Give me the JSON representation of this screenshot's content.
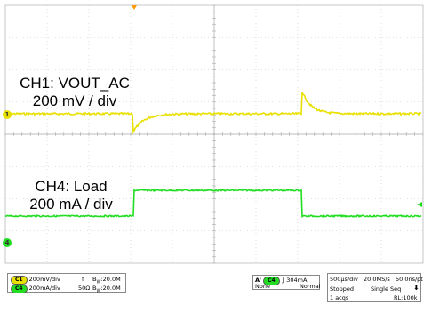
{
  "screen": {
    "colors": {
      "background": "#ffffff",
      "grid": "#c8c8c8",
      "ch1": "#e8e000",
      "ch4": "#22dd22",
      "trigger": "#ff9900"
    }
  },
  "annotations": {
    "ch1_title": "CH1: VOUT_AC",
    "ch1_scale": "200 mV / div",
    "ch4_title": "CH4: Load",
    "ch4_scale": "200 mA / div"
  },
  "markers": {
    "ch1_marker": "1",
    "ch4_marker": "4"
  },
  "channels_panel": {
    "ch1": {
      "badge": "C1",
      "scale": "200mV/div",
      "coupling": "f",
      "bw_label": "B",
      "bw_sub": "W",
      "bw_value": ":20.0M"
    },
    "ch4": {
      "badge": "C4",
      "scale": "200mA/div",
      "coupling": "50Ω",
      "bw_label": "B",
      "bw_sub": "W",
      "bw_value": ":20.0M"
    }
  },
  "trigger_panel": {
    "label": "A'",
    "badge": "C4",
    "slope": "∫",
    "level": "304mA",
    "coupling": "None",
    "mode": "Normal"
  },
  "timebase_panel": {
    "timebase": "500µs/div",
    "sample_rate": "20.0MS/s",
    "resolution": "50.0ns/pt",
    "state": "Stopped",
    "seq_mode": "Single Seq",
    "acqs": "1 acqs",
    "record_length": "RL:100k"
  }
}
